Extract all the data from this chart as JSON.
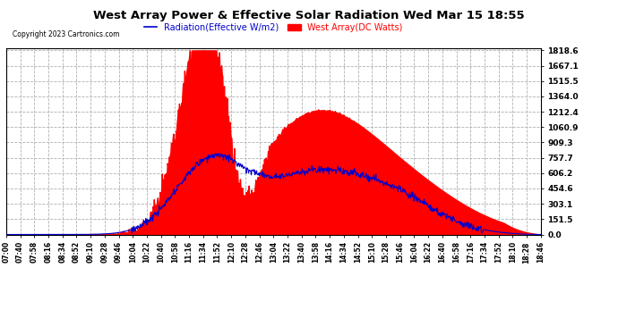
{
  "title": "West Array Power & Effective Solar Radiation Wed Mar 15 18:55",
  "copyright": "Copyright 2023 Cartronics.com",
  "legend_radiation": "Radiation(Effective W/m2)",
  "legend_west": "West Array(DC Watts)",
  "ymax": 1818.6,
  "ymin": 0.0,
  "yticks": [
    0.0,
    151.5,
    303.1,
    454.6,
    606.2,
    757.7,
    909.3,
    1060.9,
    1212.4,
    1364.0,
    1515.5,
    1667.1,
    1818.6
  ],
  "background_color": "#ffffff",
  "plot_bg_color": "#ffffff",
  "grid_color": "#b0b0b0",
  "radiation_color": "#ff0000",
  "west_color": "#0000cc",
  "xtick_labels": [
    "07:00",
    "07:40",
    "07:58",
    "08:16",
    "08:34",
    "08:52",
    "09:10",
    "09:28",
    "09:46",
    "10:04",
    "10:22",
    "10:40",
    "10:58",
    "11:16",
    "11:34",
    "11:52",
    "12:10",
    "12:28",
    "12:46",
    "13:04",
    "13:22",
    "13:40",
    "13:58",
    "14:16",
    "14:34",
    "14:52",
    "15:10",
    "15:28",
    "15:46",
    "16:04",
    "16:22",
    "16:40",
    "16:58",
    "17:16",
    "17:34",
    "17:52",
    "18:10",
    "18:28",
    "18:46"
  ],
  "figsize": [
    6.9,
    3.75
  ],
  "dpi": 100
}
